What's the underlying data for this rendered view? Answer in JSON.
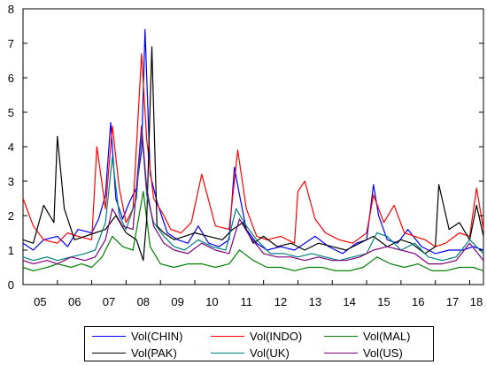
{
  "chart_data": {
    "type": "line",
    "x_tick_labels": [
      "05",
      "06",
      "07",
      "08",
      "09",
      "10",
      "11",
      "12",
      "13",
      "14",
      "15",
      "16",
      "17",
      "18"
    ],
    "y_ticks": [
      0,
      1,
      2,
      3,
      4,
      5,
      6,
      7,
      8
    ],
    "y_tick_labels": [
      "0",
      "1",
      "2",
      "3",
      "4",
      "5",
      "6",
      "7",
      "8"
    ],
    "ylim": [
      0,
      8
    ],
    "xlim": [
      2005.0,
      2018.4
    ],
    "grid": false,
    "legend_position": "bottom",
    "series": [
      {
        "name": "Vol(CHIN)",
        "color": "#0000ff",
        "x": [
          2005.0,
          2005.3,
          2005.6,
          2006.0,
          2006.3,
          2006.6,
          2007.0,
          2007.2,
          2007.4,
          2007.55,
          2007.7,
          2007.9,
          2008.1,
          2008.3,
          2008.45,
          2008.55,
          2008.7,
          2008.9,
          2009.2,
          2009.5,
          2009.8,
          2010.1,
          2010.4,
          2010.7,
          2011.0,
          2011.15,
          2011.3,
          2011.5,
          2011.8,
          2012.1,
          2012.5,
          2012.9,
          2013.2,
          2013.5,
          2013.9,
          2014.3,
          2014.7,
          2015.0,
          2015.2,
          2015.35,
          2015.6,
          2015.9,
          2016.2,
          2016.6,
          2017.0,
          2017.4,
          2017.8,
          2018.1,
          2018.4
        ],
        "y": [
          1.2,
          1.0,
          1.3,
          1.4,
          1.1,
          1.6,
          1.5,
          1.9,
          2.6,
          4.7,
          2.5,
          1.9,
          2.4,
          2.8,
          3.9,
          7.4,
          3.2,
          2.4,
          1.5,
          1.3,
          1.2,
          1.7,
          1.2,
          1.1,
          1.3,
          3.4,
          2.6,
          1.6,
          1.2,
          1.0,
          1.1,
          1.0,
          1.2,
          1.4,
          1.1,
          0.9,
          1.2,
          1.3,
          2.9,
          2.0,
          1.3,
          1.2,
          1.6,
          1.1,
          0.9,
          1.0,
          1.0,
          1.1,
          1.0
        ]
      },
      {
        "name": "Vol(INDO)",
        "color": "#ff0000",
        "x": [
          2005.0,
          2005.3,
          2005.6,
          2006.0,
          2006.3,
          2006.6,
          2007.0,
          2007.15,
          2007.4,
          2007.6,
          2007.8,
          2008.0,
          2008.2,
          2008.45,
          2008.6,
          2008.8,
          2009.1,
          2009.3,
          2009.6,
          2009.9,
          2010.2,
          2010.6,
          2011.0,
          2011.25,
          2011.5,
          2011.8,
          2012.1,
          2012.5,
          2012.9,
          2013.0,
          2013.2,
          2013.5,
          2013.8,
          2014.2,
          2014.6,
          2015.0,
          2015.2,
          2015.5,
          2015.8,
          2016.1,
          2016.4,
          2016.7,
          2017.0,
          2017.3,
          2017.7,
          2018.0,
          2018.2,
          2018.4
        ],
        "y": [
          2.5,
          1.7,
          1.3,
          1.2,
          1.5,
          1.4,
          1.3,
          4.0,
          2.2,
          4.6,
          2.8,
          1.8,
          2.2,
          6.7,
          4.2,
          2.5,
          2.0,
          1.6,
          1.5,
          1.8,
          3.2,
          1.7,
          1.6,
          3.9,
          2.2,
          1.4,
          1.3,
          1.4,
          1.2,
          2.7,
          3.0,
          1.9,
          1.5,
          1.3,
          1.2,
          1.5,
          2.6,
          1.8,
          2.3,
          1.5,
          1.4,
          1.3,
          1.1,
          1.2,
          1.5,
          1.4,
          2.8,
          1.6
        ]
      },
      {
        "name": "Vol(MAL)",
        "color": "#008000",
        "x": [
          2005.0,
          2005.3,
          2005.7,
          2006.0,
          2006.4,
          2006.7,
          2007.0,
          2007.3,
          2007.6,
          2007.9,
          2008.2,
          2008.5,
          2008.7,
          2009.0,
          2009.4,
          2009.8,
          2010.2,
          2010.6,
          2011.0,
          2011.3,
          2011.7,
          2012.1,
          2012.5,
          2012.9,
          2013.3,
          2013.7,
          2014.1,
          2014.5,
          2014.9,
          2015.3,
          2015.7,
          2016.1,
          2016.5,
          2016.9,
          2017.3,
          2017.7,
          2018.1,
          2018.4
        ],
        "y": [
          0.5,
          0.4,
          0.5,
          0.6,
          0.5,
          0.6,
          0.5,
          0.8,
          1.4,
          1.1,
          1.0,
          2.7,
          1.1,
          0.6,
          0.5,
          0.6,
          0.6,
          0.5,
          0.6,
          1.0,
          0.7,
          0.5,
          0.5,
          0.4,
          0.5,
          0.5,
          0.4,
          0.4,
          0.5,
          0.8,
          0.6,
          0.5,
          0.6,
          0.4,
          0.4,
          0.5,
          0.5,
          0.4
        ]
      },
      {
        "name": "Vol(PAK)",
        "color": "#000000",
        "x": [
          2005.0,
          2005.3,
          2005.6,
          2005.9,
          2006.0,
          2006.2,
          2006.5,
          2006.8,
          2007.1,
          2007.4,
          2007.7,
          2008.0,
          2008.3,
          2008.5,
          2008.6,
          2008.75,
          2008.9,
          2009.1,
          2009.4,
          2009.7,
          2010.0,
          2010.4,
          2010.8,
          2011.1,
          2011.4,
          2011.7,
          2012.0,
          2012.4,
          2012.8,
          2013.2,
          2013.6,
          2014.0,
          2014.4,
          2014.8,
          2015.2,
          2015.6,
          2016.0,
          2016.3,
          2016.7,
          2017.0,
          2017.1,
          2017.4,
          2017.7,
          2018.0,
          2018.2,
          2018.4
        ],
        "y": [
          1.3,
          1.2,
          2.3,
          1.8,
          4.3,
          2.2,
          1.3,
          1.4,
          1.5,
          1.6,
          2.0,
          1.5,
          1.3,
          0.7,
          1.9,
          6.9,
          1.7,
          1.5,
          1.3,
          1.4,
          1.5,
          1.4,
          1.3,
          1.6,
          1.8,
          1.2,
          1.4,
          1.1,
          1.2,
          1.0,
          1.2,
          1.1,
          1.0,
          1.2,
          1.4,
          1.1,
          1.3,
          1.2,
          0.9,
          1.1,
          2.9,
          1.6,
          1.8,
          1.3,
          2.3,
          1.4
        ]
      },
      {
        "name": "Vol(UK)",
        "color": "#008080",
        "x": [
          2005.0,
          2005.3,
          2005.7,
          2006.0,
          2006.4,
          2006.8,
          2007.1,
          2007.4,
          2007.6,
          2007.8,
          2008.0,
          2008.3,
          2008.45,
          2008.6,
          2008.8,
          2009.1,
          2009.4,
          2009.7,
          2010.1,
          2010.5,
          2010.9,
          2011.2,
          2011.5,
          2011.8,
          2012.2,
          2012.6,
          2013.0,
          2013.4,
          2013.8,
          2014.2,
          2014.6,
          2015.0,
          2015.3,
          2015.6,
          2016.0,
          2016.4,
          2016.8,
          2017.2,
          2017.6,
          2018.0,
          2018.4
        ],
        "y": [
          0.8,
          0.7,
          0.8,
          0.7,
          0.8,
          0.9,
          1.0,
          1.8,
          3.7,
          2.0,
          1.6,
          2.5,
          4.5,
          2.6,
          1.8,
          1.4,
          1.1,
          1.0,
          1.3,
          1.1,
          1.0,
          2.2,
          1.7,
          1.3,
          0.9,
          0.9,
          0.8,
          0.9,
          0.8,
          0.7,
          0.8,
          0.9,
          1.5,
          1.4,
          1.0,
          1.2,
          0.8,
          0.7,
          0.8,
          1.3,
          0.9
        ]
      },
      {
        "name": "Vol(US)",
        "color": "#800080",
        "x": [
          2005.0,
          2005.3,
          2005.7,
          2006.0,
          2006.4,
          2006.8,
          2007.1,
          2007.4,
          2007.6,
          2007.9,
          2008.2,
          2008.45,
          2008.6,
          2008.8,
          2009.1,
          2009.4,
          2009.8,
          2010.2,
          2010.6,
          2011.0,
          2011.3,
          2011.6,
          2012.0,
          2012.4,
          2012.8,
          2013.2,
          2013.6,
          2014.0,
          2014.4,
          2014.8,
          2015.2,
          2015.6,
          2016.0,
          2016.4,
          2016.8,
          2017.2,
          2017.6,
          2018.0,
          2018.4
        ],
        "y": [
          0.7,
          0.6,
          0.7,
          0.6,
          0.8,
          0.7,
          0.8,
          1.3,
          2.2,
          1.7,
          1.6,
          4.6,
          2.8,
          1.7,
          1.2,
          1.0,
          0.9,
          1.2,
          1.0,
          0.9,
          1.9,
          1.4,
          0.9,
          0.8,
          0.8,
          0.7,
          0.8,
          0.7,
          0.7,
          0.8,
          1.0,
          1.1,
          1.0,
          0.9,
          0.6,
          0.6,
          0.7,
          1.2,
          0.7
        ]
      }
    ]
  }
}
